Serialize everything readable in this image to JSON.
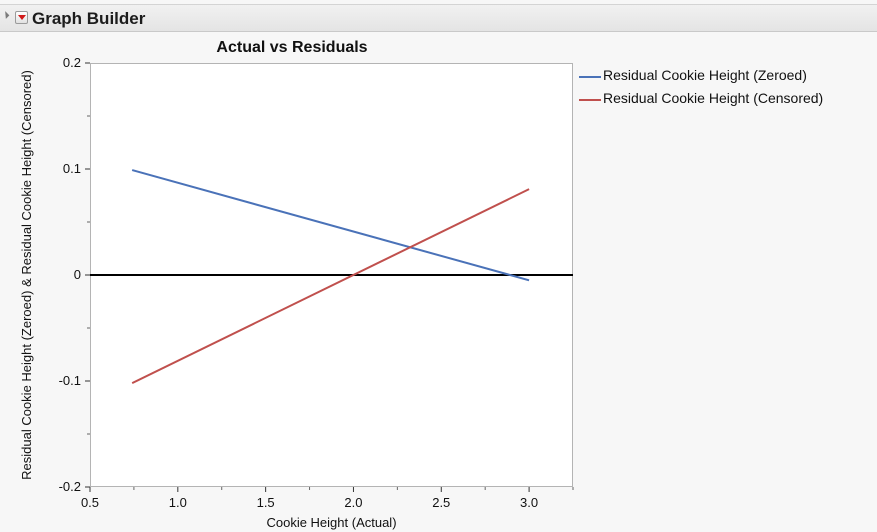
{
  "window": {
    "title": "Graph Builder"
  },
  "chart_data": {
    "type": "line",
    "title": "Actual vs Residuals",
    "xlabel": "Cookie Height (Actual)",
    "ylabel": "Residual Cookie Height (Zeroed) & Residual Cookie Height (Censored)",
    "xlim": [
      0.5,
      3.25
    ],
    "ylim": [
      -0.2,
      0.2
    ],
    "x_ticks": [
      "0.5",
      "1.0",
      "1.5",
      "2.0",
      "2.5",
      "3.0"
    ],
    "y_ticks": [
      "-0.2",
      "-0.1",
      "0",
      "0.1",
      "0.2"
    ],
    "grid": false,
    "legend": "right",
    "reference_line_y": 0,
    "series": [
      {
        "name": "Residual Cookie Height (Zeroed)",
        "color": "#4a72b8",
        "x": [
          0.74,
          3.0
        ],
        "y": [
          0.099,
          -0.005
        ]
      },
      {
        "name": "Residual Cookie Height (Censored)",
        "color": "#c0504d",
        "x": [
          0.74,
          3.0
        ],
        "y": [
          -0.102,
          0.081
        ]
      }
    ]
  }
}
